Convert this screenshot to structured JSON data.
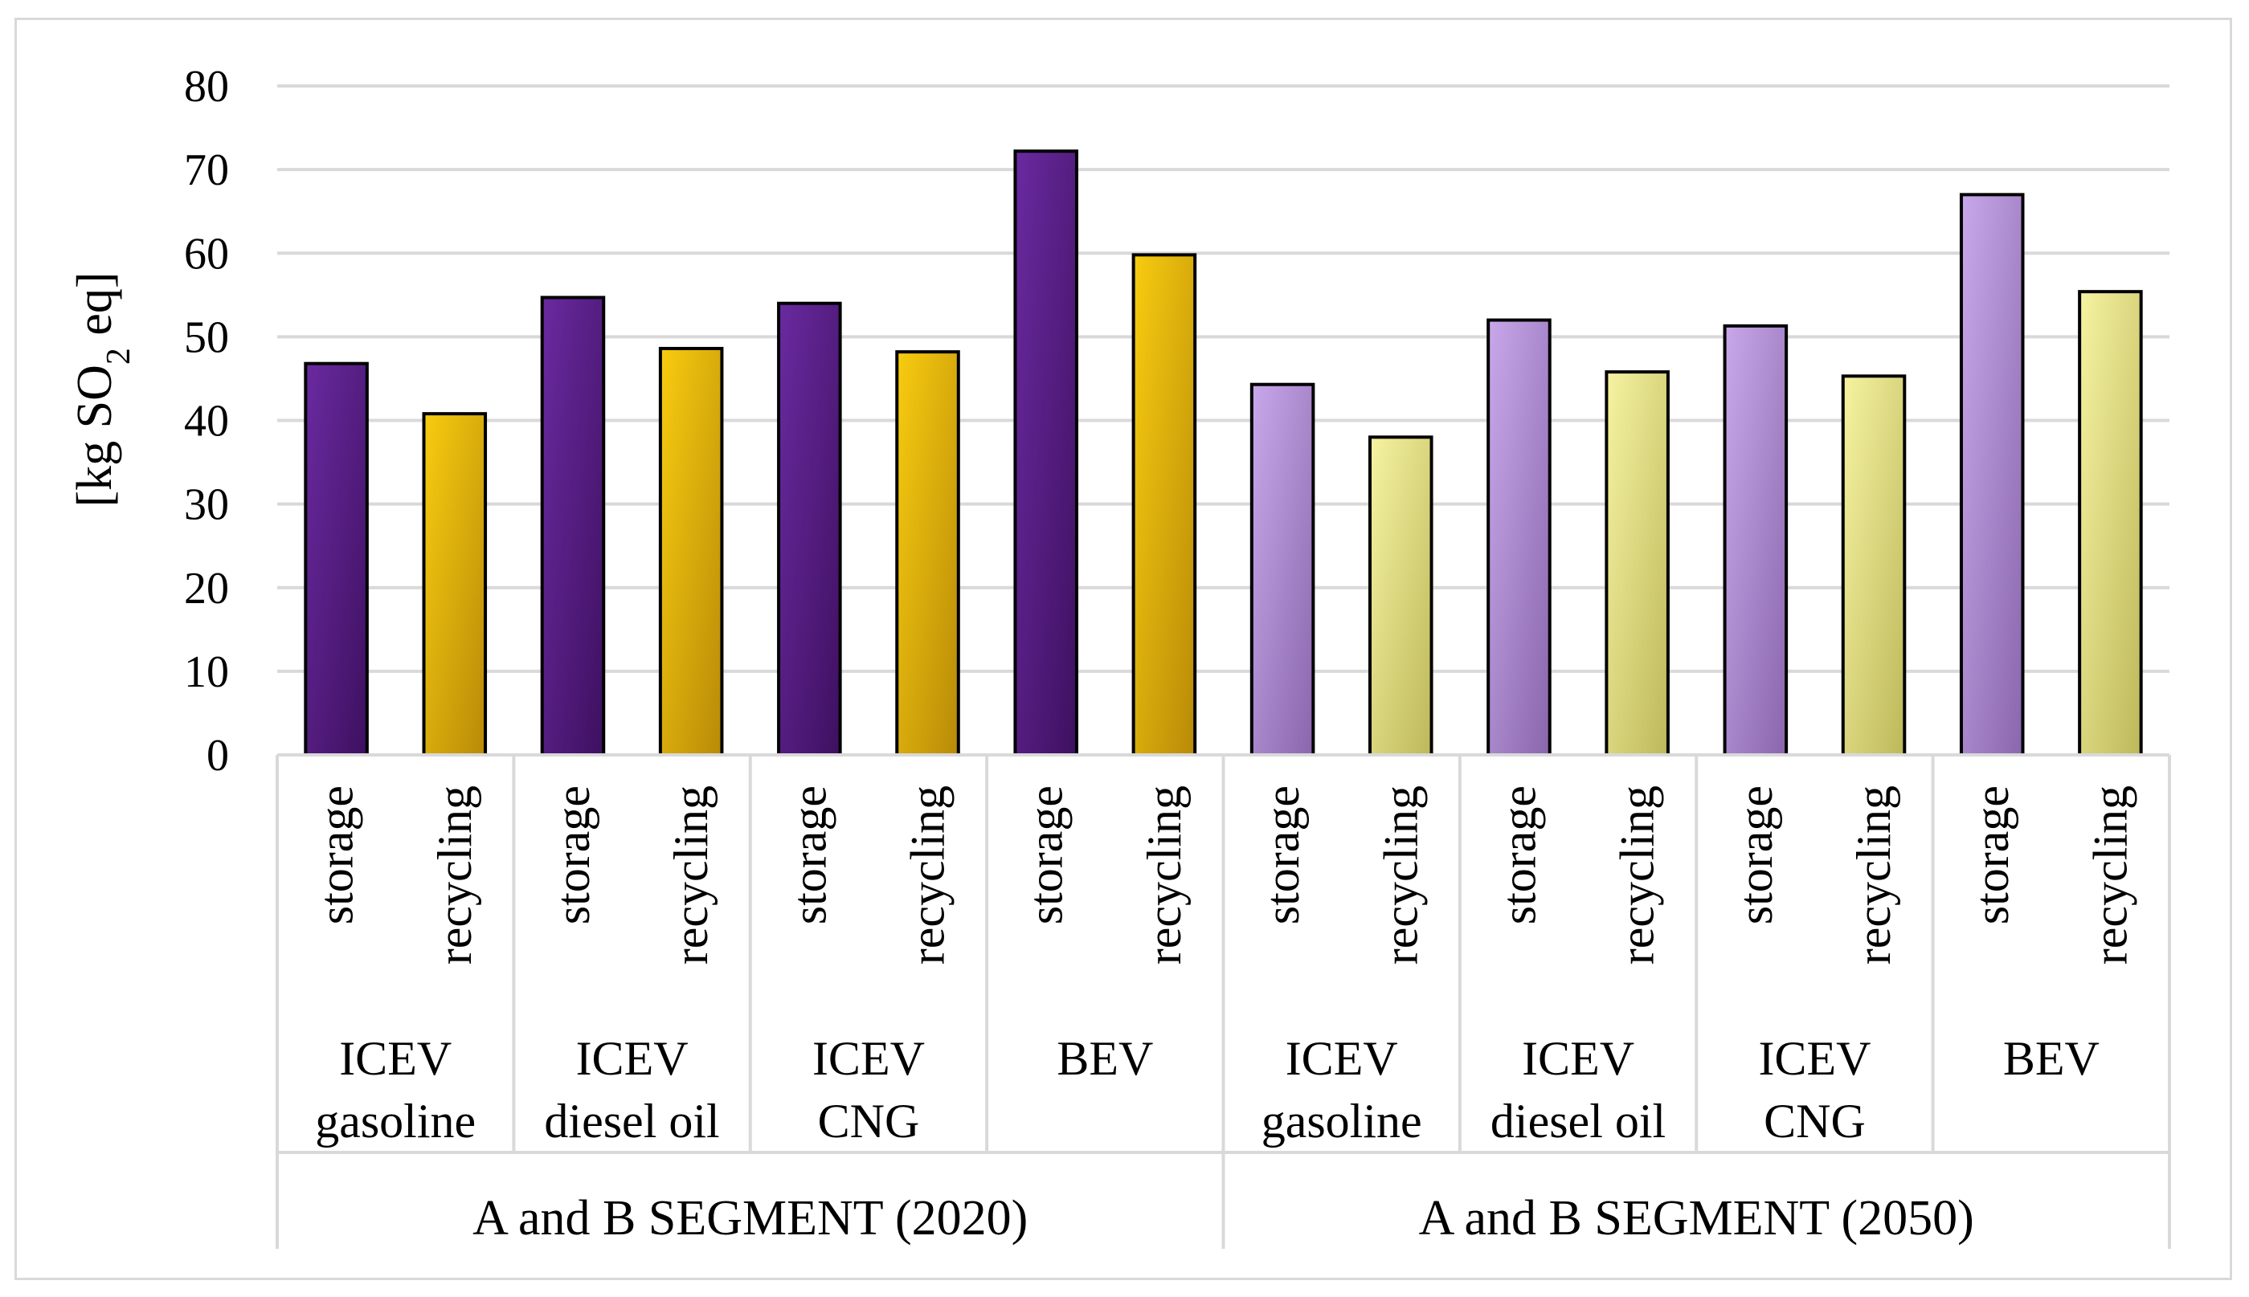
{
  "chart_data": {
    "type": "bar",
    "title": "",
    "ylabel": "[kg SO2 eq]",
    "ylabel_parts": {
      "before": "[kg SO",
      "subscript": "2",
      "after": " eq]"
    },
    "ylim": [
      0,
      80
    ],
    "yticks": [
      0,
      10,
      20,
      30,
      40,
      50,
      60,
      70,
      80
    ],
    "grid": true,
    "legend": "none",
    "segments": [
      {
        "label": "A and B SEGMENT (2020)",
        "storage_color": "#5b1e8c",
        "recycling_color": "#e8b400",
        "groups": [
          {
            "label_lines": [
              "ICEV",
              "gasoline"
            ],
            "bars": [
              {
                "category": "storage",
                "value": 46.8
              },
              {
                "category": "recycling",
                "value": 40.8
              }
            ]
          },
          {
            "label_lines": [
              "ICEV",
              "diesel oil"
            ],
            "bars": [
              {
                "category": "storage",
                "value": 54.7
              },
              {
                "category": "recycling",
                "value": 48.6
              }
            ]
          },
          {
            "label_lines": [
              "ICEV",
              "CNG"
            ],
            "bars": [
              {
                "category": "storage",
                "value": 54.0
              },
              {
                "category": "recycling",
                "value": 48.2
              }
            ]
          },
          {
            "label_lines": [
              "BEV"
            ],
            "bars": [
              {
                "category": "storage",
                "value": 72.2
              },
              {
                "category": "recycling",
                "value": 59.8
              }
            ]
          }
        ]
      },
      {
        "label": "A and B SEGMENT (2050)",
        "storage_color": "#b48fd8",
        "recycling_color": "#eeea80",
        "groups": [
          {
            "label_lines": [
              "ICEV",
              "gasoline"
            ],
            "bars": [
              {
                "category": "storage",
                "value": 44.3
              },
              {
                "category": "recycling",
                "value": 38.0
              }
            ]
          },
          {
            "label_lines": [
              "ICEV",
              "diesel oil"
            ],
            "bars": [
              {
                "category": "storage",
                "value": 52.0
              },
              {
                "category": "recycling",
                "value": 45.8
              }
            ]
          },
          {
            "label_lines": [
              "ICEV",
              "CNG"
            ],
            "bars": [
              {
                "category": "storage",
                "value": 51.3
              },
              {
                "category": "recycling",
                "value": 45.3
              }
            ]
          },
          {
            "label_lines": [
              "BEV"
            ],
            "bars": [
              {
                "category": "storage",
                "value": 67.0
              },
              {
                "category": "recycling",
                "value": 55.4
              }
            ]
          }
        ]
      }
    ]
  }
}
